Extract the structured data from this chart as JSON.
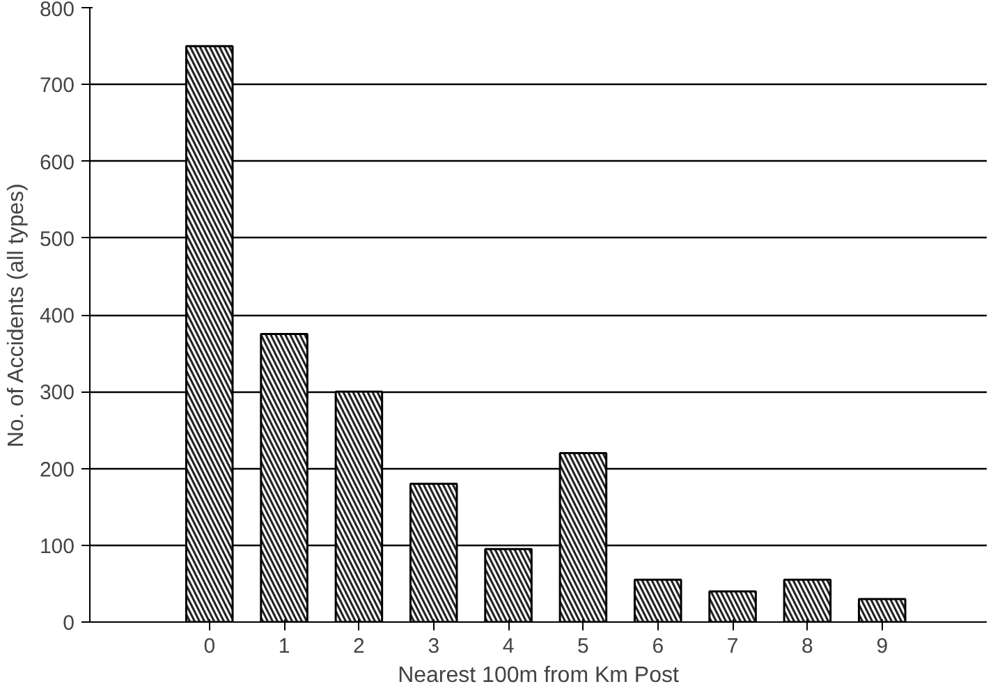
{
  "chart_data": {
    "type": "bar",
    "xlabel": "Nearest 100m from Km Post",
    "ylabel": "No. of Accidents (all types)",
    "categories": [
      "0",
      "1",
      "2",
      "3",
      "4",
      "5",
      "6",
      "7",
      "8",
      "9"
    ],
    "values": [
      750,
      375,
      300,
      180,
      95,
      220,
      55,
      40,
      55,
      30
    ],
    "color": "#222222",
    "ylim": [
      0,
      800
    ],
    "yticks": [
      0,
      100,
      200,
      300,
      400,
      500,
      600,
      700,
      800
    ],
    "grid": "y"
  }
}
